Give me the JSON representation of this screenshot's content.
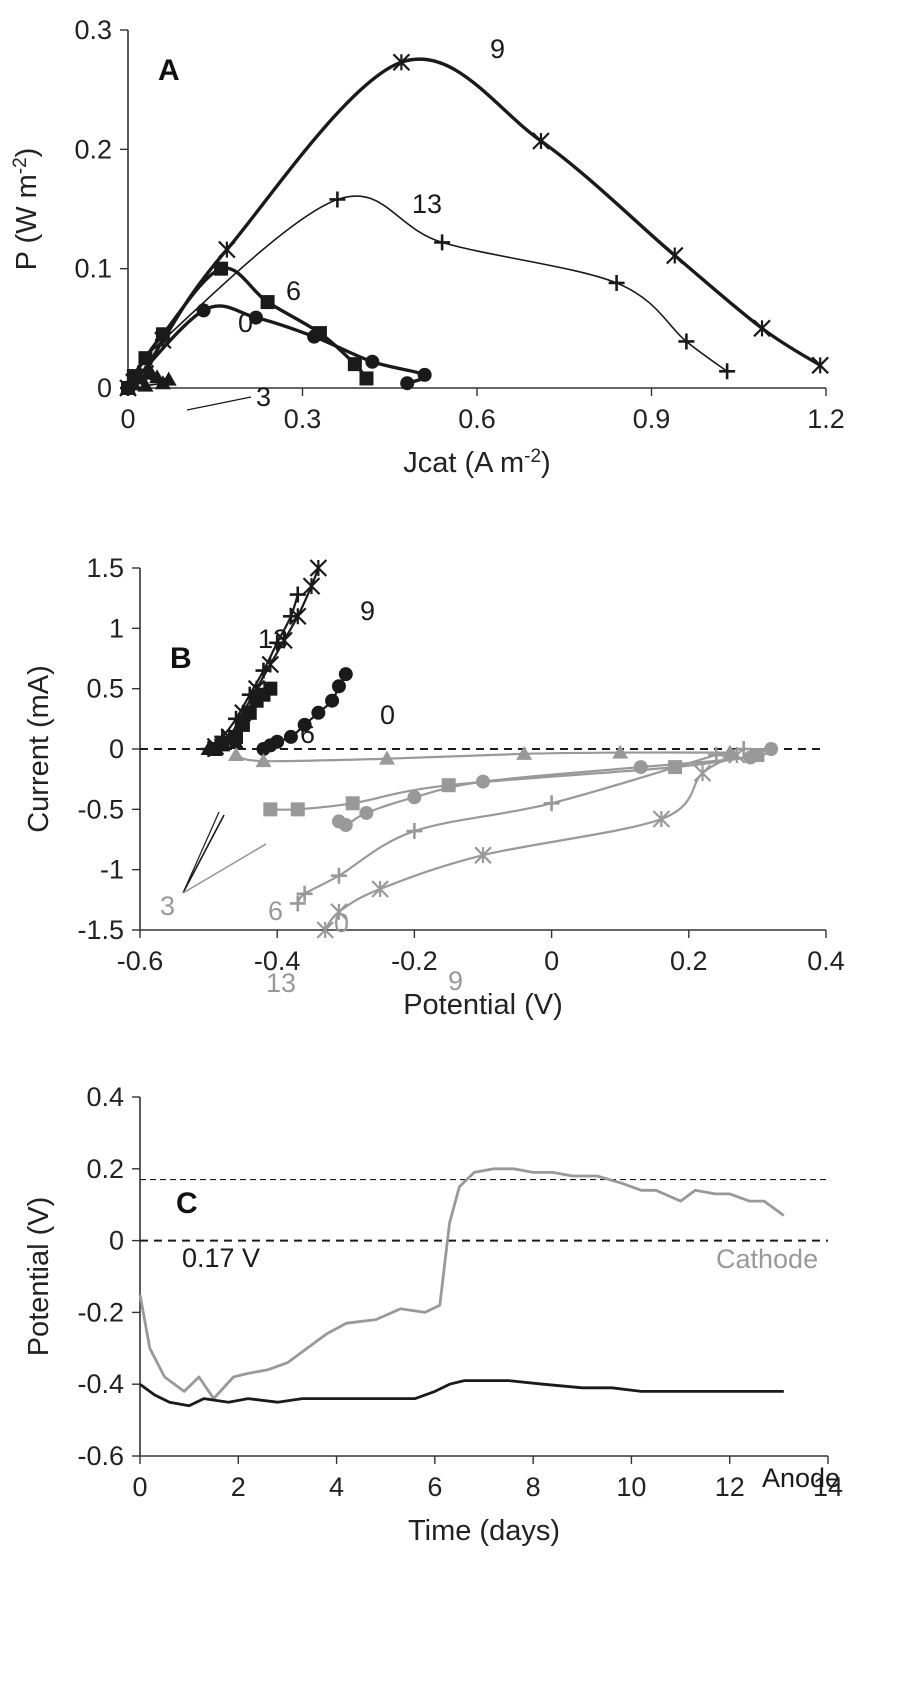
{
  "chart_data": [
    {
      "panel": "A",
      "type": "line",
      "xlabel": "Jcat (A m-2)",
      "ylabel": "P (W m-2)",
      "xlim": [
        0,
        1.2
      ],
      "ylim": [
        0,
        0.3
      ],
      "xticks": [
        "0",
        "0.3",
        "0.6",
        "0.9",
        "1.2"
      ],
      "yticks": [
        "0",
        "0.1",
        "0.2",
        "0.3"
      ],
      "series": [
        {
          "name": "9",
          "color": "#1a1a1a",
          "marker": "star",
          "x": [
            0.0,
            0.01,
            0.03,
            0.06,
            0.17,
            0.47,
            0.71,
            0.94,
            1.09,
            1.19
          ],
          "y": [
            0.0,
            0.005,
            0.012,
            0.04,
            0.116,
            0.273,
            0.207,
            0.111,
            0.05,
            0.019
          ]
        },
        {
          "name": "13",
          "color": "#1a1a1a",
          "marker": "plus",
          "x": [
            0.0,
            0.06,
            0.36,
            0.54,
            0.84,
            0.96,
            1.03
          ],
          "y": [
            0.0,
            0.04,
            0.158,
            0.122,
            0.088,
            0.039,
            0.014
          ]
        },
        {
          "name": "6",
          "color": "#1a1a1a",
          "marker": "square",
          "x": [
            0.0,
            0.01,
            0.03,
            0.06,
            0.16,
            0.24,
            0.33,
            0.39,
            0.41
          ],
          "y": [
            0.0,
            0.01,
            0.025,
            0.045,
            0.1,
            0.072,
            0.046,
            0.02,
            0.008
          ]
        },
        {
          "name": "0",
          "color": "#1a1a1a",
          "marker": "circle",
          "x": [
            0.0,
            0.13,
            0.22,
            0.32,
            0.42,
            0.51,
            0.48
          ],
          "y": [
            0.0,
            0.065,
            0.059,
            0.043,
            0.022,
            0.011,
            0.004
          ]
        },
        {
          "name": "3",
          "color": "#1a1a1a",
          "marker": "triangle",
          "x": [
            0.0,
            0.01,
            0.02,
            0.04,
            0.05,
            0.07,
            0.06,
            0.03
          ],
          "y": [
            0.0,
            0.003,
            0.008,
            0.012,
            0.009,
            0.007,
            0.004,
            0.002
          ]
        }
      ],
      "annotations": [
        "9",
        "13",
        "6",
        "0",
        "3"
      ]
    },
    {
      "panel": "B",
      "type": "line",
      "xlabel": "Potential (V)",
      "ylabel": "Current (mA)",
      "xlim": [
        -0.6,
        0.4
      ],
      "ylim": [
        -1.5,
        1.5
      ],
      "xticks": [
        "-0.6",
        "-0.4",
        "-0.2",
        "0",
        "0.2",
        "0.4"
      ],
      "yticks": [
        "-1.5",
        "-1",
        "-0.5",
        "0",
        "0.5",
        "1",
        "1.5"
      ],
      "dashed_zero_line": true,
      "series": [
        {
          "name": "9",
          "color": "#1a1a1a",
          "marker": "star",
          "x": [
            -0.49,
            -0.47,
            -0.45,
            -0.43,
            -0.41,
            -0.39,
            -0.37,
            -0.35,
            -0.34
          ],
          "y": [
            0.02,
            0.1,
            0.3,
            0.5,
            0.7,
            0.9,
            1.1,
            1.35,
            1.5
          ]
        },
        {
          "name": "13",
          "color": "#1a1a1a",
          "marker": "plus",
          "x": [
            -0.5,
            -0.48,
            -0.46,
            -0.44,
            -0.42,
            -0.4,
            -0.38,
            -0.37
          ],
          "y": [
            0.0,
            0.1,
            0.25,
            0.45,
            0.65,
            0.88,
            1.1,
            1.28
          ]
        },
        {
          "name": "6",
          "color": "#1a1a1a",
          "marker": "square",
          "x": [
            -0.49,
            -0.48,
            -0.46,
            -0.45,
            -0.44,
            -0.43,
            -0.42,
            -0.41
          ],
          "y": [
            0.0,
            0.05,
            0.1,
            0.2,
            0.3,
            0.4,
            0.45,
            0.5
          ]
        },
        {
          "name": "0",
          "color": "#1a1a1a",
          "marker": "circle",
          "x": [
            -0.42,
            -0.41,
            -0.4,
            -0.38,
            -0.36,
            -0.34,
            -0.32,
            -0.31,
            -0.3
          ],
          "y": [
            0.0,
            0.03,
            0.06,
            0.1,
            0.2,
            0.3,
            0.4,
            0.52,
            0.62
          ]
        },
        {
          "name": "3",
          "color": "#1a1a1a",
          "marker": "triangle",
          "x": [
            -0.5,
            -0.48,
            -0.46
          ],
          "y": [
            0.0,
            0.03,
            0.05
          ]
        },
        {
          "name": "3",
          "color": "#999999",
          "marker": "triangle",
          "x": [
            0.26,
            0.1,
            -0.04,
            -0.24,
            -0.42,
            -0.46
          ],
          "y": [
            -0.03,
            -0.03,
            -0.04,
            -0.08,
            -0.1,
            -0.05
          ]
        },
        {
          "name": "6",
          "color": "#999999",
          "marker": "square",
          "x": [
            0.3,
            0.18,
            -0.15,
            -0.29,
            -0.37,
            -0.41
          ],
          "y": [
            -0.05,
            -0.15,
            -0.3,
            -0.45,
            -0.5,
            -0.5
          ]
        },
        {
          "name": "0",
          "color": "#999999",
          "marker": "circle",
          "x": [
            0.32,
            0.29,
            0.13,
            -0.1,
            -0.2,
            -0.27,
            -0.3,
            -0.31
          ],
          "y": [
            0.0,
            -0.07,
            -0.15,
            -0.27,
            -0.4,
            -0.53,
            -0.63,
            -0.6
          ]
        },
        {
          "name": "13",
          "color": "#999999",
          "marker": "plus",
          "x": [
            0.28,
            0.24,
            0.0,
            -0.2,
            -0.31,
            -0.36,
            -0.37
          ],
          "y": [
            0.0,
            -0.05,
            -0.45,
            -0.68,
            -1.05,
            -1.2,
            -1.28
          ]
        },
        {
          "name": "9",
          "color": "#999999",
          "marker": "star",
          "x": [
            0.27,
            0.22,
            0.16,
            -0.1,
            -0.25,
            -0.31,
            -0.33
          ],
          "y": [
            -0.05,
            -0.2,
            -0.58,
            -0.88,
            -1.16,
            -1.35,
            -1.5
          ]
        }
      ],
      "annotations": [
        "9",
        "13",
        "6",
        "0",
        "3",
        "6",
        "0",
        "13",
        "9"
      ]
    },
    {
      "panel": "C",
      "type": "line",
      "xlabel": "Time (days)",
      "ylabel": "Potential (V)",
      "xlim": [
        0,
        14
      ],
      "ylim": [
        -0.6,
        0.4
      ],
      "xticks": [
        "0",
        "2",
        "4",
        "6",
        "8",
        "10",
        "12",
        "14"
      ],
      "yticks": [
        "-0.6",
        "-0.4",
        "-0.2",
        "0",
        "0.2",
        "0.4"
      ],
      "reference_lines": [
        {
          "y": 0.17,
          "label": "0.17 V",
          "style": "dashed-thin"
        },
        {
          "y": 0.0,
          "style": "dashed"
        }
      ],
      "series": [
        {
          "name": "Cathode",
          "color": "#999999",
          "x": [
            0.0,
            0.2,
            0.5,
            0.9,
            1.2,
            1.5,
            1.9,
            2.2,
            2.6,
            3.0,
            3.4,
            3.8,
            4.2,
            4.8,
            5.3,
            5.8,
            6.1,
            6.3,
            6.5,
            6.8,
            7.2,
            7.6,
            8.0,
            8.4,
            8.8,
            9.3,
            9.8,
            10.2,
            10.5,
            11.0,
            11.3,
            11.7,
            12.0,
            12.4,
            12.7,
            13.1
          ],
          "y": [
            -0.15,
            -0.3,
            -0.38,
            -0.42,
            -0.38,
            -0.44,
            -0.38,
            -0.37,
            -0.36,
            -0.34,
            -0.3,
            -0.26,
            -0.23,
            -0.22,
            -0.19,
            -0.2,
            -0.18,
            0.05,
            0.15,
            0.19,
            0.2,
            0.2,
            0.19,
            0.19,
            0.18,
            0.18,
            0.16,
            0.14,
            0.14,
            0.11,
            0.14,
            0.13,
            0.13,
            0.11,
            0.11,
            0.07
          ]
        },
        {
          "name": "Anode",
          "color": "#1a1a1a",
          "x": [
            0.0,
            0.3,
            0.6,
            1.0,
            1.3,
            1.8,
            2.2,
            2.8,
            3.3,
            3.8,
            4.3,
            5.0,
            5.6,
            6.0,
            6.3,
            6.6,
            7.0,
            7.5,
            8.2,
            9.0,
            9.6,
            10.2,
            10.8,
            11.5,
            12.2,
            12.8,
            13.1
          ],
          "y": [
            -0.4,
            -0.43,
            -0.45,
            -0.46,
            -0.44,
            -0.45,
            -0.44,
            -0.45,
            -0.44,
            -0.44,
            -0.44,
            -0.44,
            -0.44,
            -0.42,
            -0.4,
            -0.39,
            -0.39,
            -0.39,
            -0.4,
            -0.41,
            -0.41,
            -0.42,
            -0.42,
            -0.42,
            -0.42,
            -0.42,
            -0.42
          ]
        }
      ],
      "annotations": [
        "0.17 V",
        "Cathode",
        "Anode"
      ]
    }
  ],
  "labels": {
    "panelA": "A",
    "panelB": "B",
    "panelC": "C",
    "annA_9": "9",
    "annA_13": "13",
    "annA_6": "6",
    "annA_0": "0",
    "annA_3": "3",
    "annB_9": "9",
    "annB_13": "13",
    "annB_6": "6",
    "annB_0": "0",
    "annB_3": "3",
    "annB_6g": "6",
    "annB_0g": "0",
    "annB_13g": "13",
    "annB_9g": "9",
    "annC_ref": "0.17 V",
    "annC_cathode": "Cathode",
    "annC_anode": "Anode"
  },
  "colors": {
    "black": "#1a1a1a",
    "gray": "#999999",
    "axis": "#333333"
  }
}
